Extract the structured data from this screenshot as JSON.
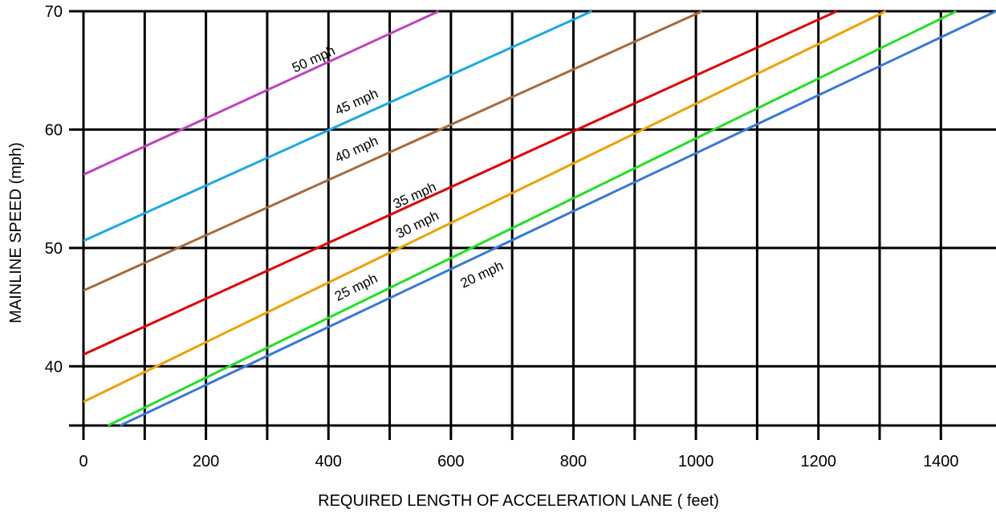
{
  "chart_data": {
    "type": "line",
    "title": "",
    "xlabel": "REQUIRED LENGTH OF ACCELERATION LANE ( feet)",
    "ylabel": "MAINLINE SPEED (mph)",
    "xlim": [
      0,
      1490
    ],
    "ylim": [
      35,
      70
    ],
    "xticks": [
      "0",
      "200",
      "400",
      "600",
      "800",
      "1000",
      "1200",
      "1400"
    ],
    "yticks": [
      "40",
      "50",
      "60",
      "70"
    ],
    "grid": true,
    "grid_x_step": 100,
    "grid_y_step": 10,
    "series": [
      {
        "name": "50 mph",
        "color": "#c040c0",
        "x": [
          0,
          580
        ],
        "y": [
          56.2,
          70
        ],
        "label_at": {
          "x": 345,
          "y": 64.8
        }
      },
      {
        "name": "45 mph",
        "color": "#1aa8e8",
        "x": [
          0,
          830
        ],
        "y": [
          50.6,
          70
        ],
        "label_at": {
          "x": 415,
          "y": 61.2
        }
      },
      {
        "name": "40 mph",
        "color": "#a86a3a",
        "x": [
          0,
          1010
        ],
        "y": [
          46.4,
          70
        ],
        "label_at": {
          "x": 415,
          "y": 57.2
        }
      },
      {
        "name": "35 mph",
        "color": "#e00000",
        "x": [
          0,
          1230
        ],
        "y": [
          41.0,
          70
        ],
        "label_at": {
          "x": 510,
          "y": 53.3
        }
      },
      {
        "name": "30 mph",
        "color": "#f0a000",
        "x": [
          0,
          1310
        ],
        "y": [
          37.0,
          70
        ],
        "label_at": {
          "x": 515,
          "y": 50.8
        }
      },
      {
        "name": "25 mph",
        "color": "#22e022",
        "x": [
          40,
          1425
        ],
        "y": [
          35.0,
          70
        ],
        "label_at": {
          "x": 415,
          "y": 45.5
        }
      },
      {
        "name": "20 mph",
        "color": "#3878d8",
        "x": [
          60,
          1490
        ],
        "y": [
          35.0,
          70
        ],
        "label_at": {
          "x": 620,
          "y": 46.6
        }
      }
    ]
  }
}
